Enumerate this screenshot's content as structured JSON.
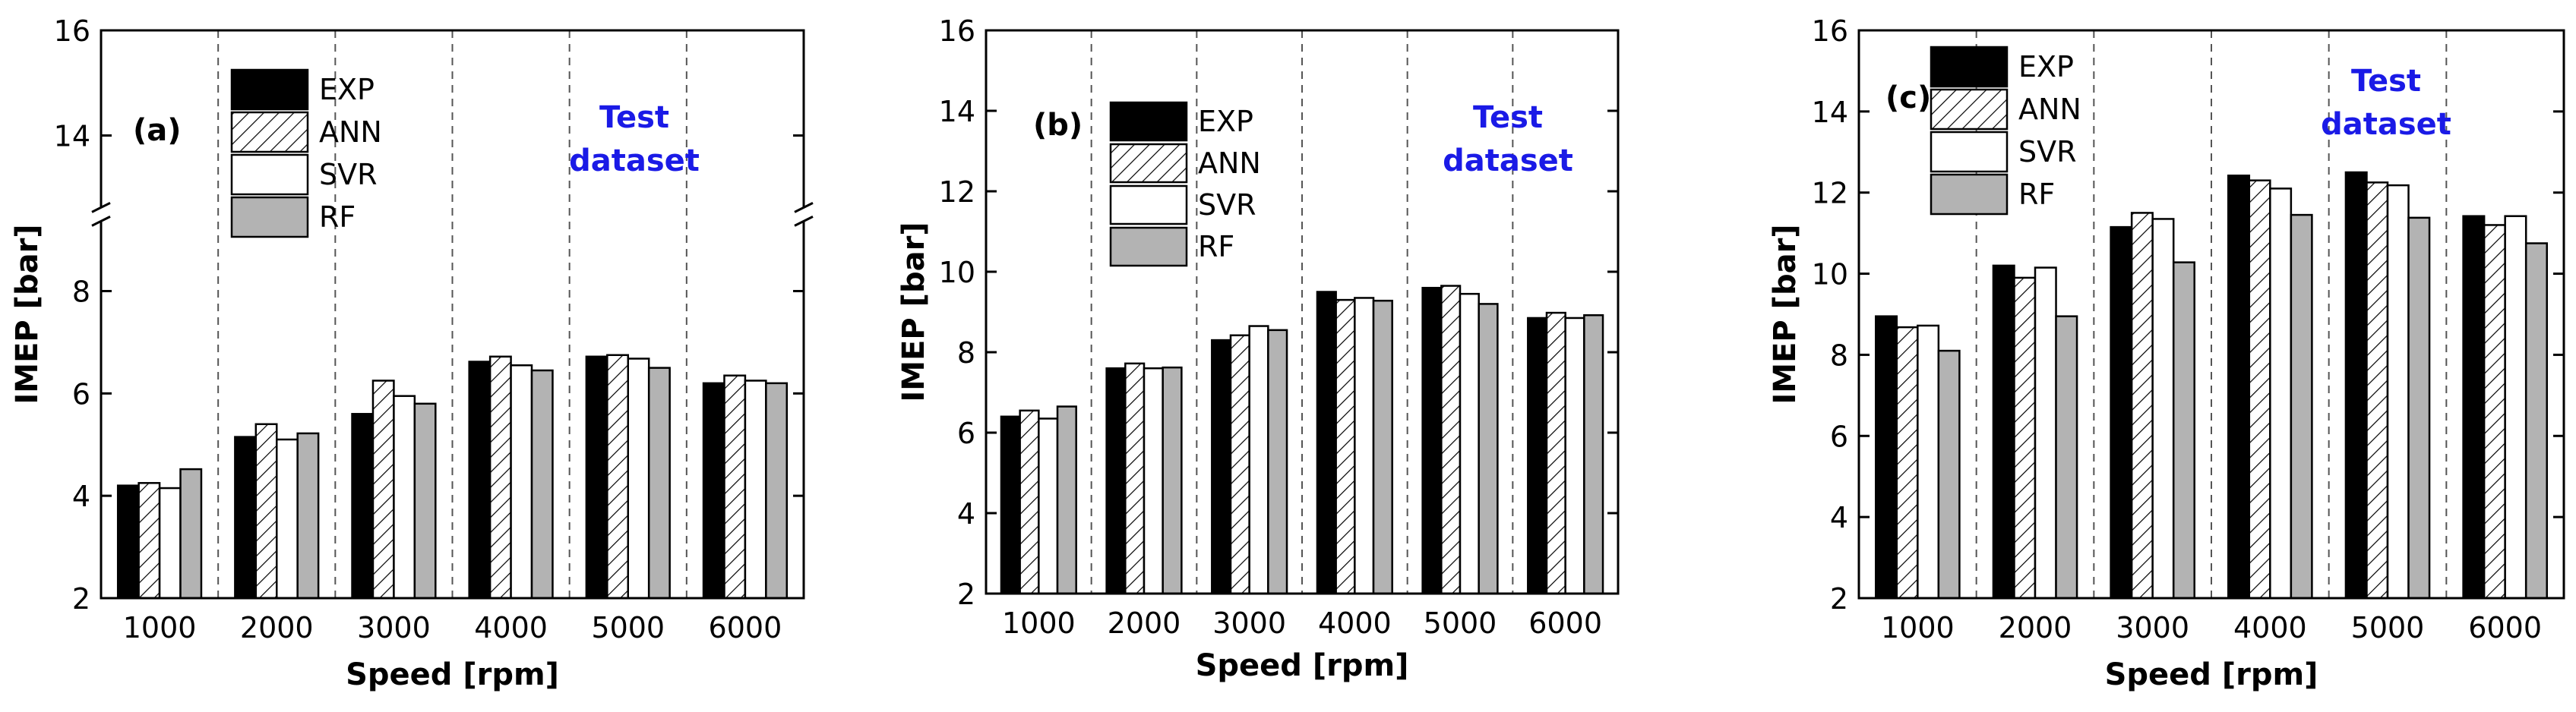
{
  "legend_labels": [
    "EXP",
    "ANN",
    "SVR",
    "RF"
  ],
  "colors": {
    "exp": "#000000",
    "ann": "#ffffff",
    "svr": "#ffffff",
    "rf": "#b3b3b3",
    "annotation": "#1a1ae6"
  },
  "chart_data": [
    {
      "type": "bar",
      "panel_label": "(a)",
      "annotation": [
        "Test",
        "dataset"
      ],
      "xlabel": "Speed [rpm]",
      "ylabel": "IMEP [bar]",
      "categories": [
        "1000",
        "2000",
        "3000",
        "4000",
        "5000",
        "6000"
      ],
      "ylim": [
        2,
        16
      ],
      "y_break": [
        9.5,
        12.5
      ],
      "yticks": [
        2,
        4,
        6,
        8,
        14,
        16
      ],
      "ytick_labels": [
        "2",
        "4",
        "6",
        "8",
        "14",
        "16"
      ],
      "series": [
        {
          "name": "EXP",
          "values": [
            4.2,
            5.15,
            5.6,
            6.62,
            6.72,
            6.2
          ]
        },
        {
          "name": "ANN",
          "values": [
            4.25,
            5.4,
            6.25,
            6.72,
            6.75,
            6.35
          ]
        },
        {
          "name": "SVR",
          "values": [
            4.15,
            5.1,
            5.95,
            6.55,
            6.68,
            6.25
          ]
        },
        {
          "name": "RF",
          "values": [
            4.52,
            5.22,
            5.8,
            6.45,
            6.5,
            6.2
          ]
        }
      ]
    },
    {
      "type": "bar",
      "panel_label": "(b)",
      "annotation": [
        "Test",
        "dataset"
      ],
      "xlabel": "Speed [rpm]",
      "ylabel": "IMEP [bar]",
      "categories": [
        "1000",
        "2000",
        "3000",
        "4000",
        "5000",
        "6000"
      ],
      "ylim": [
        2,
        16
      ],
      "yticks": [
        2,
        4,
        6,
        8,
        10,
        12,
        14,
        16
      ],
      "ytick_labels": [
        "2",
        "4",
        "6",
        "8",
        "10",
        "12",
        "14",
        "16"
      ],
      "series": [
        {
          "name": "EXP",
          "values": [
            6.4,
            7.6,
            8.3,
            9.5,
            9.6,
            8.85
          ]
        },
        {
          "name": "ANN",
          "values": [
            6.55,
            7.72,
            8.42,
            9.3,
            9.65,
            8.98
          ]
        },
        {
          "name": "SVR",
          "values": [
            6.35,
            7.6,
            8.65,
            9.35,
            9.45,
            8.85
          ]
        },
        {
          "name": "RF",
          "values": [
            6.65,
            7.62,
            8.55,
            9.28,
            9.2,
            8.92
          ]
        }
      ]
    },
    {
      "type": "bar",
      "panel_label": "(c)",
      "annotation": [
        "Test",
        "dataset"
      ],
      "xlabel": "Speed [rpm]",
      "ylabel": "IMEP [bar]",
      "categories": [
        "1000",
        "2000",
        "3000",
        "4000",
        "5000",
        "6000"
      ],
      "ylim": [
        2,
        16
      ],
      "yticks": [
        2,
        4,
        6,
        8,
        10,
        12,
        14,
        16
      ],
      "ytick_labels": [
        "2",
        "4",
        "6",
        "8",
        "10",
        "12",
        "14",
        "16"
      ],
      "series": [
        {
          "name": "EXP",
          "values": [
            8.95,
            10.2,
            11.15,
            12.42,
            12.5,
            11.42
          ]
        },
        {
          "name": "ANN",
          "values": [
            8.68,
            9.9,
            11.5,
            12.3,
            12.25,
            11.2
          ]
        },
        {
          "name": "SVR",
          "values": [
            8.72,
            10.15,
            11.35,
            12.1,
            12.18,
            11.42
          ]
        },
        {
          "name": "RF",
          "values": [
            8.1,
            8.95,
            10.28,
            11.45,
            11.38,
            10.75
          ]
        }
      ]
    }
  ]
}
